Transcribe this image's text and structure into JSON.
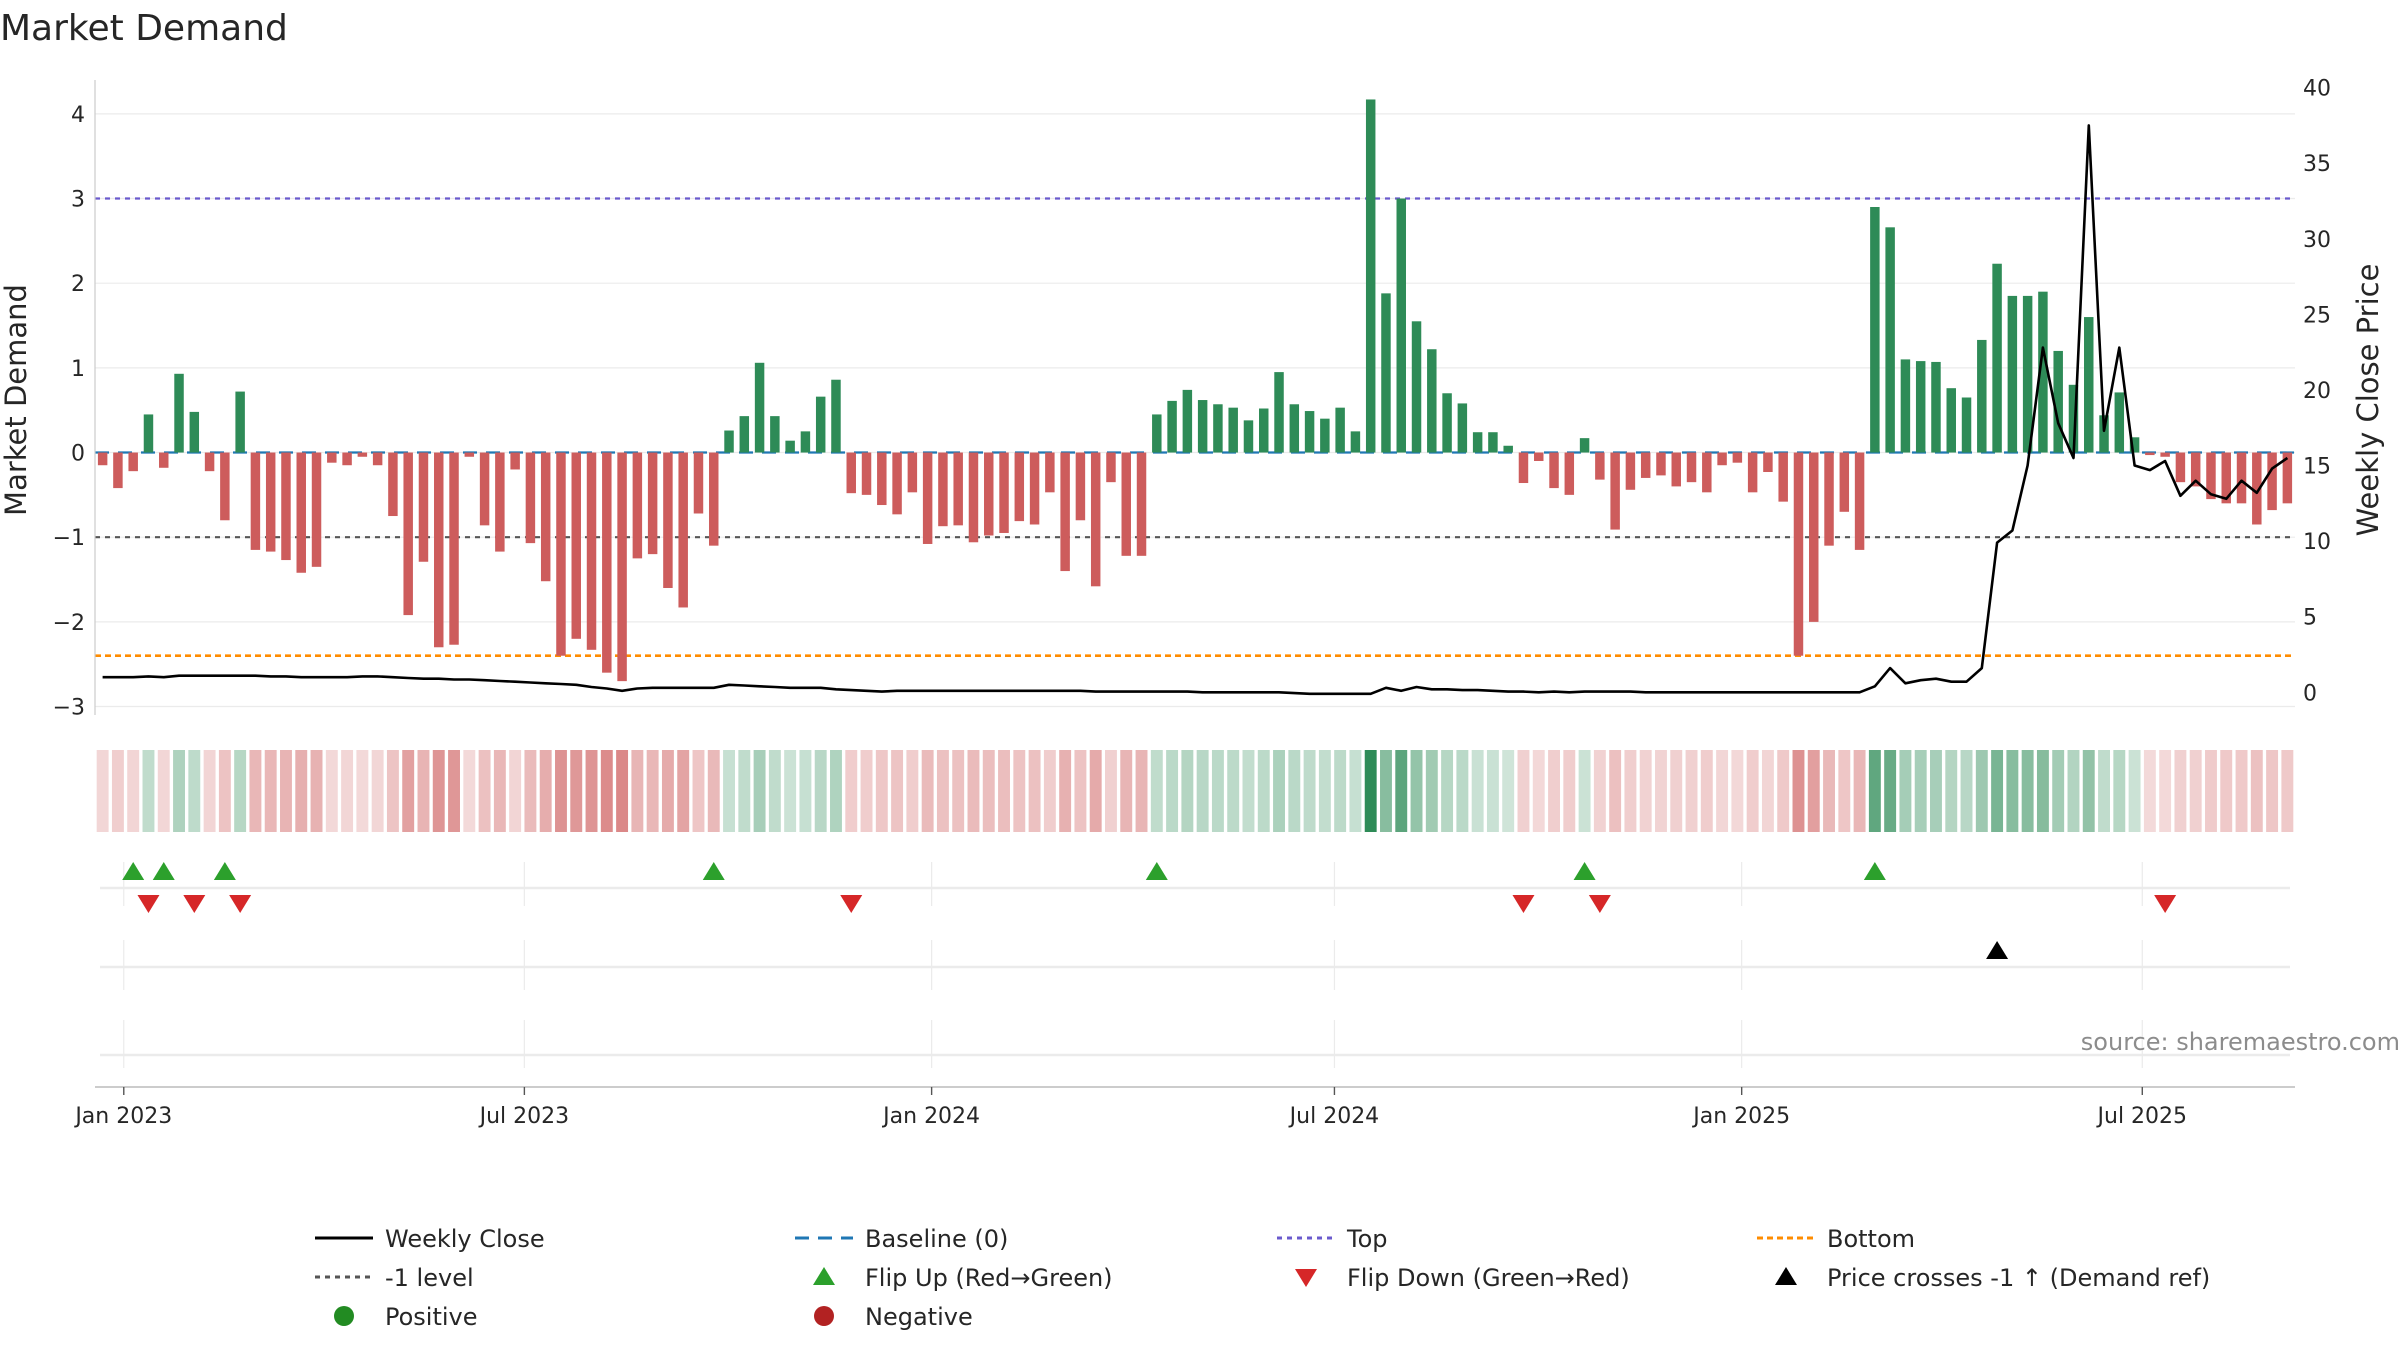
{
  "chart_data": {
    "type": "bar",
    "title": "Market Demand",
    "ylabel_left": "Market Demand",
    "ylabel_right": "Weekly Close Price",
    "source": "source: sharemaestro.com",
    "x_date_range": [
      "2022-12-19",
      "2025-09-08"
    ],
    "left_ylim": [
      -3.1,
      4.4
    ],
    "right_ylim": [
      -1.5,
      40.5
    ],
    "left_ticks": [
      {
        "value": 4,
        "label": "4"
      },
      {
        "value": 3,
        "label": "3"
      },
      {
        "value": 2,
        "label": "2"
      },
      {
        "value": 1,
        "label": "1"
      },
      {
        "value": 0,
        "label": "0"
      },
      {
        "value": -1,
        "label": "−1"
      },
      {
        "value": -2,
        "label": "−2"
      },
      {
        "value": -3,
        "label": "−3"
      }
    ],
    "right_ticks": [
      {
        "value": 40,
        "label": "40"
      },
      {
        "value": 35,
        "label": "35"
      },
      {
        "value": 30,
        "label": "30"
      },
      {
        "value": 25,
        "label": "25"
      },
      {
        "value": 20,
        "label": "20"
      },
      {
        "value": 15,
        "label": "15"
      },
      {
        "value": 10,
        "label": "10"
      },
      {
        "value": 5,
        "label": "5"
      },
      {
        "value": 0,
        "label": "0"
      }
    ],
    "x_ticks": [
      {
        "date": "2023-01-01",
        "label": "Jan 2023"
      },
      {
        "date": "2023-07-01",
        "label": "Jul 2023"
      },
      {
        "date": "2024-01-01",
        "label": "Jan 2024"
      },
      {
        "date": "2024-07-01",
        "label": "Jul 2024"
      },
      {
        "date": "2025-01-01",
        "label": "Jan 2025"
      },
      {
        "date": "2025-07-01",
        "label": "Jul 2025"
      }
    ],
    "reference_lines": {
      "top": 3.0,
      "bottom": -2.4,
      "minus_one": -1.0,
      "baseline": 0
    },
    "demand": [
      -0.15,
      -0.42,
      -0.22,
      0.45,
      -0.18,
      0.93,
      0.48,
      -0.22,
      -0.8,
      0.72,
      -1.15,
      -1.17,
      -1.27,
      -1.42,
      -1.35,
      -0.12,
      -0.15,
      -0.05,
      -0.15,
      -0.75,
      -1.92,
      -1.29,
      -2.3,
      -2.27,
      -0.05,
      -0.86,
      -1.17,
      -0.2,
      -1.07,
      -1.52,
      -2.4,
      -2.2,
      -2.33,
      -2.6,
      -2.7,
      -1.25,
      -1.2,
      -1.6,
      -1.83,
      -0.72,
      -1.1,
      0.26,
      0.43,
      1.06,
      0.43,
      0.14,
      0.25,
      0.66,
      0.86,
      -0.48,
      -0.5,
      -0.62,
      -0.73,
      -0.47,
      -1.08,
      -0.87,
      -0.86,
      -1.06,
      -0.98,
      -0.95,
      -0.81,
      -0.85,
      -0.47,
      -1.4,
      -0.8,
      -1.58,
      -0.35,
      -1.22,
      -1.22,
      0.45,
      0.61,
      0.74,
      0.62,
      0.57,
      0.53,
      0.38,
      0.52,
      0.95,
      0.57,
      0.49,
      0.4,
      0.53,
      0.25,
      4.17,
      1.88,
      3.0,
      1.55,
      1.22,
      0.7,
      0.58,
      0.24,
      0.24,
      0.08,
      -0.36,
      -0.1,
      -0.42,
      -0.5,
      0.17,
      -0.32,
      -0.91,
      -0.44,
      -0.3,
      -0.27,
      -0.4,
      -0.35,
      -0.47,
      -0.15,
      -0.12,
      -0.47,
      -0.23,
      -0.58,
      -2.4,
      -2.0,
      -1.1,
      -0.7,
      -1.15,
      2.9,
      2.66,
      1.1,
      1.08,
      1.07,
      0.76,
      0.65,
      1.33,
      2.23,
      1.85,
      1.85,
      1.9,
      1.2,
      0.8,
      1.6,
      0.44,
      0.71,
      0.18,
      -0.03,
      -0.05,
      -0.35,
      -0.4,
      -0.55,
      -0.6,
      -0.6,
      -0.85,
      -0.68,
      -0.6
    ],
    "weekly_close": [
      1.0,
      1.0,
      1.0,
      1.05,
      1.0,
      1.1,
      1.1,
      1.1,
      1.1,
      1.1,
      1.1,
      1.05,
      1.05,
      1.0,
      1.0,
      1.0,
      1.0,
      1.05,
      1.05,
      1.0,
      0.95,
      0.9,
      0.9,
      0.85,
      0.85,
      0.8,
      0.75,
      0.7,
      0.65,
      0.6,
      0.55,
      0.5,
      0.35,
      0.25,
      0.1,
      0.25,
      0.3,
      0.3,
      0.3,
      0.3,
      0.3,
      0.5,
      0.45,
      0.4,
      0.35,
      0.3,
      0.3,
      0.3,
      0.2,
      0.15,
      0.1,
      0.05,
      0.1,
      0.1,
      0.1,
      0.1,
      0.1,
      0.1,
      0.1,
      0.1,
      0.1,
      0.1,
      0.1,
      0.1,
      0.1,
      0.05,
      0.05,
      0.05,
      0.05,
      0.05,
      0.05,
      0.05,
      0.0,
      0.0,
      0.0,
      0.0,
      0.0,
      0.0,
      -0.05,
      -0.1,
      -0.1,
      -0.1,
      -0.1,
      -0.1,
      0.3,
      0.1,
      0.35,
      0.2,
      0.2,
      0.15,
      0.15,
      0.1,
      0.05,
      0.05,
      0.0,
      0.05,
      0.0,
      0.05,
      0.05,
      0.05,
      0.05,
      0.0,
      0.0,
      0.0,
      0.0,
      0.0,
      0.0,
      0.0,
      0.0,
      0.0,
      0.0,
      0.0,
      0.0,
      0.0,
      0.0,
      0.0,
      0.4,
      1.6,
      0.6,
      0.8,
      0.9,
      0.7,
      0.7,
      1.6,
      9.9,
      10.7,
      15.0,
      22.8,
      17.8,
      15.5,
      37.5,
      17.3,
      22.8,
      15.0,
      14.7,
      15.3,
      13.0,
      14.0,
      13.1,
      12.8,
      14.0,
      13.2,
      14.8,
      15.5
    ],
    "flip_up_weeks": [
      2,
      4,
      8,
      40,
      69,
      97,
      116
    ],
    "flip_down_weeks": [
      3,
      6,
      9,
      49,
      93,
      98,
      135
    ],
    "price_cross_weeks": [
      124
    ]
  },
  "legend": [
    {
      "key": "close",
      "label": "Weekly Close"
    },
    {
      "key": "baseline",
      "label": "Baseline (0)"
    },
    {
      "key": "top",
      "label": "Top"
    },
    {
      "key": "bottom",
      "label": "Bottom"
    },
    {
      "key": "minus1",
      "label": "-1 level"
    },
    {
      "key": "flipup",
      "label": "Flip Up (Red→Green)"
    },
    {
      "key": "flipdown",
      "label": "Flip Down (Green→Red)"
    },
    {
      "key": "cross",
      "label": "Price crosses -1 ↑ (Demand ref)"
    },
    {
      "key": "positive",
      "label": "Positive"
    },
    {
      "key": "negative",
      "label": "Negative"
    }
  ],
  "colors": {
    "positive_bar": "#2e8b57",
    "negative_bar": "#cd5c5c",
    "close_line": "#000000",
    "baseline": "#1f77b4",
    "top": "#6a5acd",
    "bottom": "#ff8c00",
    "minus_one": "#555555",
    "flip_up": "#2ca02c",
    "flip_down": "#d62728",
    "cross": "#000000",
    "positive_dot": "#228b22",
    "negative_dot": "#b22222",
    "grid": "#ebebeb",
    "axis": "#cccccc"
  }
}
